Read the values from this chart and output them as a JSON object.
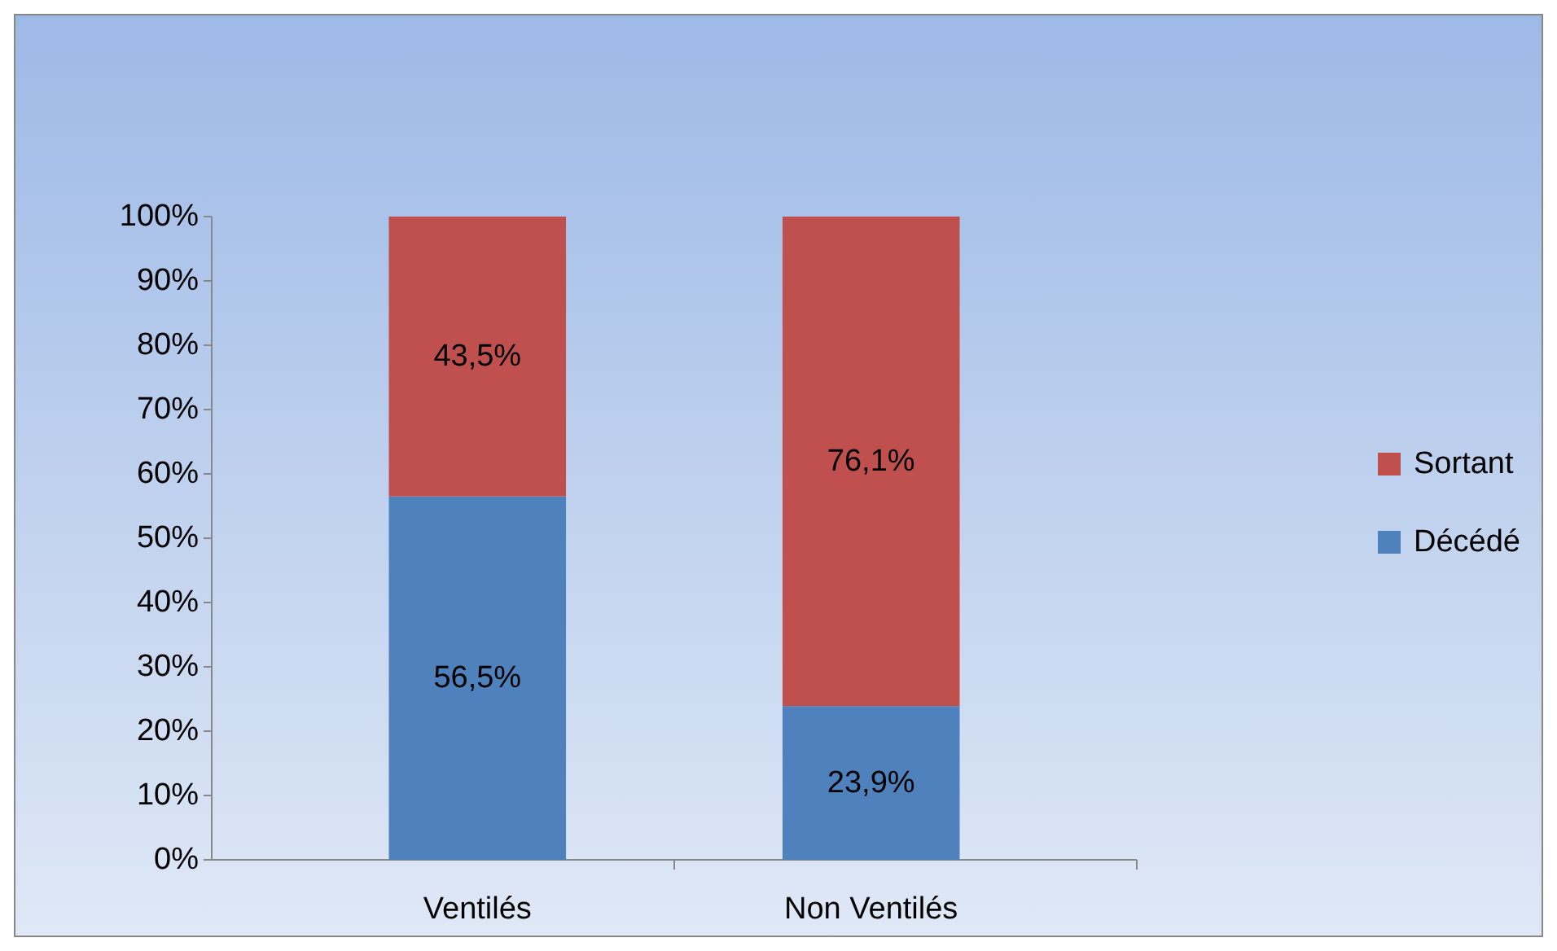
{
  "chart_data": {
    "type": "bar",
    "stacked": true,
    "categories": [
      "Ventilés",
      "Non Ventilés"
    ],
    "series": [
      {
        "name": "Décédé",
        "color": "#4f81bd",
        "values": [
          56.5,
          23.9
        ],
        "value_labels": [
          "56,5%",
          "23,9%"
        ]
      },
      {
        "name": "Sortant",
        "color": "#c0504d",
        "values": [
          43.5,
          76.1
        ],
        "value_labels": [
          "43,5%",
          "76,1%"
        ]
      }
    ],
    "ylim": [
      0,
      100
    ],
    "yticks": [
      {
        "value": 0,
        "label": "0%"
      },
      {
        "value": 10,
        "label": "10%"
      },
      {
        "value": 20,
        "label": "20%"
      },
      {
        "value": 30,
        "label": "30%"
      },
      {
        "value": 40,
        "label": "40%"
      },
      {
        "value": 50,
        "label": "50%"
      },
      {
        "value": 60,
        "label": "60%"
      },
      {
        "value": 70,
        "label": "70%"
      },
      {
        "value": 80,
        "label": "80%"
      },
      {
        "value": 90,
        "label": "90%"
      },
      {
        "value": 100,
        "label": "100%"
      }
    ],
    "legend": "right"
  }
}
